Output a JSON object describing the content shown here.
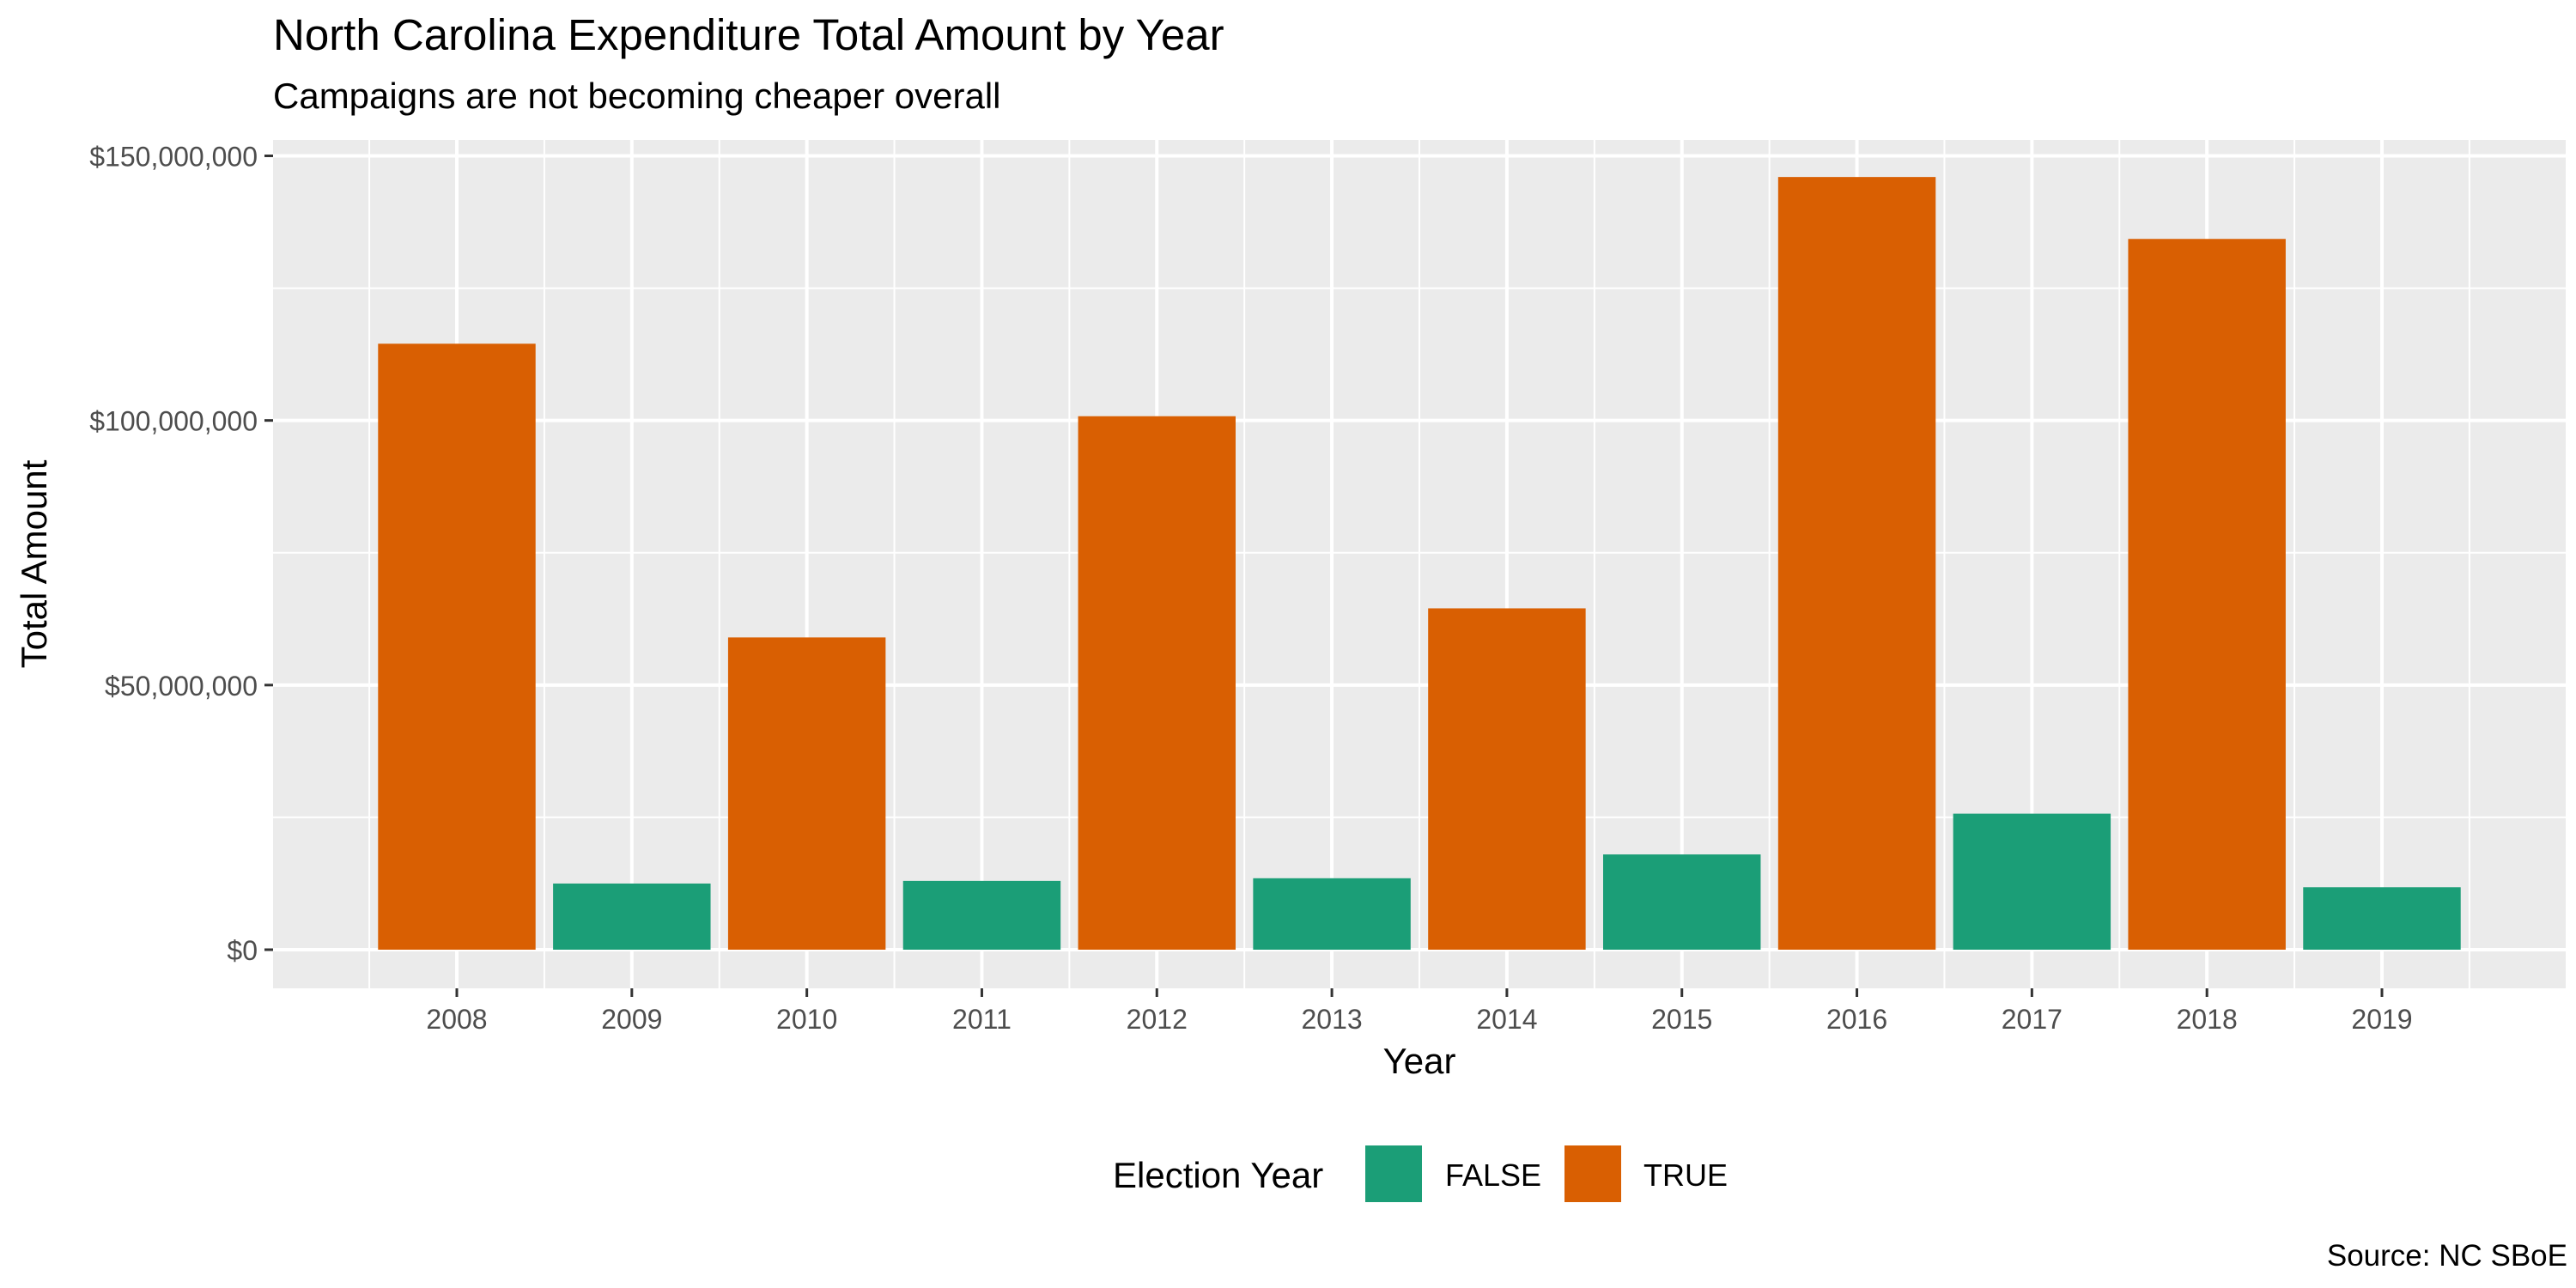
{
  "chart_data": {
    "type": "bar",
    "title": "North Carolina Expenditure Total Amount by Year",
    "subtitle": "Campaigns are not becoming cheaper overall",
    "xlabel": "Year",
    "ylabel": "Total Amount",
    "caption": "Source: NC SBoE",
    "categories": [
      "2008",
      "2009",
      "2010",
      "2011",
      "2012",
      "2013",
      "2014",
      "2015",
      "2016",
      "2017",
      "2018",
      "2019"
    ],
    "values": [
      114500000,
      12500000,
      59000000,
      13000000,
      100800000,
      13500000,
      64500000,
      18000000,
      146000000,
      25700000,
      134300000,
      11800000
    ],
    "election_year": [
      true,
      false,
      true,
      false,
      true,
      false,
      true,
      false,
      true,
      false,
      true,
      false
    ],
    "ylim": [
      -7300000,
      153000000
    ],
    "y_ticks": [
      0,
      50000000,
      100000000,
      150000000
    ],
    "y_tick_labels": [
      "$0",
      "$50,000,000",
      "$100,000,000",
      "$150,000,000"
    ],
    "grid": true,
    "legend": {
      "title": "Election Year",
      "position": "bottom",
      "items": [
        {
          "label": "FALSE",
          "color": "#1b9e77"
        },
        {
          "label": "TRUE",
          "color": "#d95f02"
        }
      ]
    },
    "colors": {
      "true": "#d95f02",
      "false": "#1b9e77",
      "panel": "#ebebeb",
      "grid": "#ffffff"
    }
  }
}
